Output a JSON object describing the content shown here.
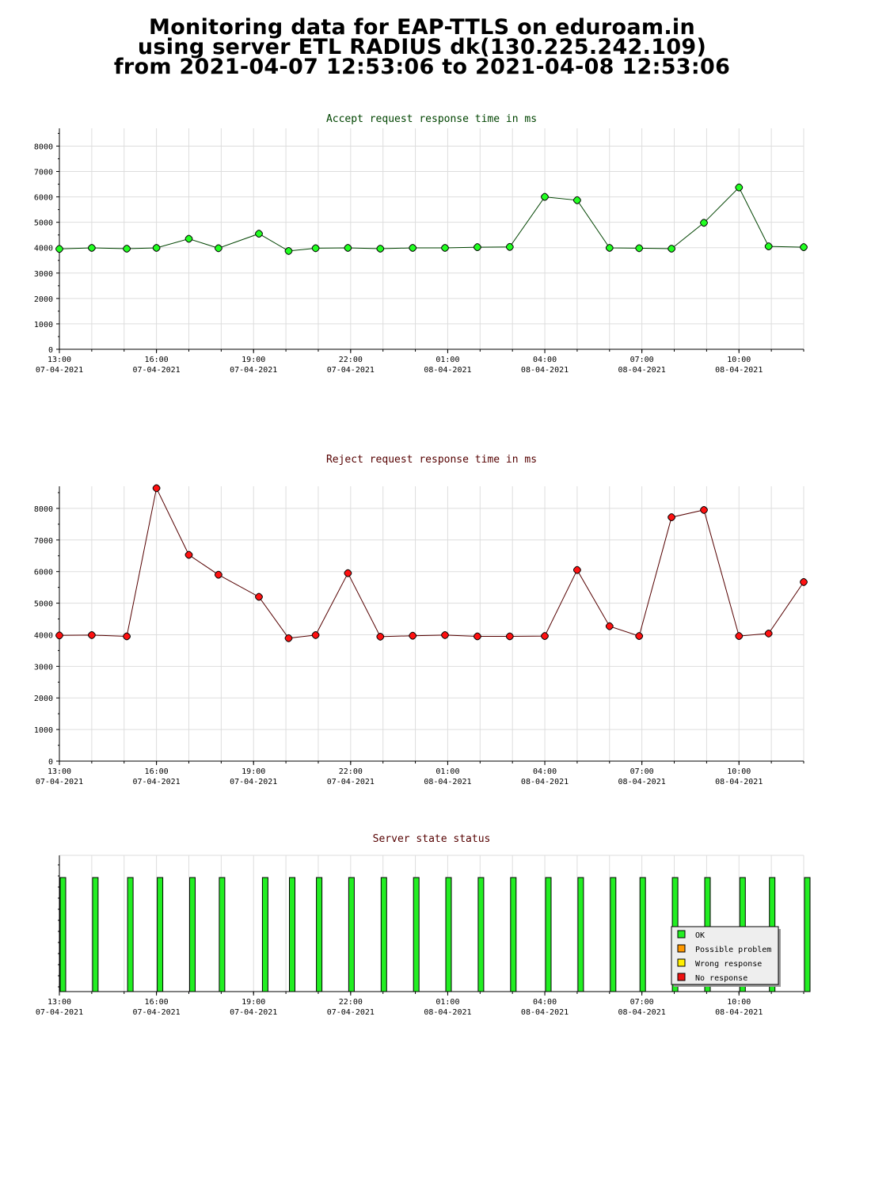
{
  "header": {
    "line1": "Monitoring data for EAP-TTLS on eduroam.in",
    "line2": "using server ETL RADIUS dk(130.225.242.109)",
    "line3": "from 2021-04-07  12:53:06 to 2021-04-08 12:53:06"
  },
  "chart_data": [
    {
      "type": "line",
      "title": "Accept request response time in ms",
      "title_color": "#004400",
      "xlabel": "",
      "ylabel": "",
      "x_ticks": [
        {
          "time": "13:00",
          "date": "07-04-2021"
        },
        {
          "time": "16:00",
          "date": "07-04-2021"
        },
        {
          "time": "19:00",
          "date": "07-04-2021"
        },
        {
          "time": "22:00",
          "date": "07-04-2021"
        },
        {
          "time": "01:00",
          "date": "08-04-2021"
        },
        {
          "time": "04:00",
          "date": "08-04-2021"
        },
        {
          "time": "07:00",
          "date": "08-04-2021"
        },
        {
          "time": "10:00",
          "date": "08-04-2021"
        }
      ],
      "x_range": [
        "2021-04-07 13:00",
        "2021-04-08 12:00"
      ],
      "y_ticks": [
        0,
        1000,
        2000,
        3000,
        4000,
        5000,
        6000,
        7000,
        8000
      ],
      "ylim": [
        0,
        8700
      ],
      "grid": true,
      "line_color": "#004400",
      "marker_color": "#22ff22",
      "series": [
        {
          "x": [
            "2021-04-07 13:00",
            "2021-04-07 14:00",
            "2021-04-07 15:05",
            "2021-04-07 16:00",
            "2021-04-07 17:00",
            "2021-04-07 17:55",
            "2021-04-07 19:10",
            "2021-04-07 20:05",
            "2021-04-07 20:55",
            "2021-04-07 21:55",
            "2021-04-07 22:55",
            "2021-04-07 23:55",
            "2021-04-08 00:55",
            "2021-04-08 01:55",
            "2021-04-08 02:55",
            "2021-04-08 04:00",
            "2021-04-08 05:00",
            "2021-04-08 06:00",
            "2021-04-08 06:55",
            "2021-04-08 07:55",
            "2021-04-08 08:55",
            "2021-04-08 10:00",
            "2021-04-08 10:55",
            "2021-04-08 12:00"
          ],
          "values": [
            3950,
            3990,
            3960,
            3990,
            4350,
            3980,
            4550,
            3870,
            3980,
            3990,
            3960,
            3990,
            3990,
            4020,
            4030,
            6000,
            5870,
            3990,
            3980,
            3960,
            4980,
            6370,
            4050,
            4020
          ]
        }
      ]
    },
    {
      "type": "line",
      "title": "Reject request response time in ms",
      "title_color": "#550000",
      "xlabel": "",
      "ylabel": "",
      "x_ticks": [
        {
          "time": "13:00",
          "date": "07-04-2021"
        },
        {
          "time": "16:00",
          "date": "07-04-2021"
        },
        {
          "time": "19:00",
          "date": "07-04-2021"
        },
        {
          "time": "22:00",
          "date": "07-04-2021"
        },
        {
          "time": "01:00",
          "date": "08-04-2021"
        },
        {
          "time": "04:00",
          "date": "08-04-2021"
        },
        {
          "time": "07:00",
          "date": "08-04-2021"
        },
        {
          "time": "10:00",
          "date": "08-04-2021"
        }
      ],
      "x_range": [
        "2021-04-07 13:00",
        "2021-04-08 12:00"
      ],
      "y_ticks": [
        0,
        1000,
        2000,
        3000,
        4000,
        5000,
        6000,
        7000,
        8000
      ],
      "ylim": [
        0,
        8700
      ],
      "grid": true,
      "line_color": "#550000",
      "marker_color": "#ff1111",
      "series": [
        {
          "x": [
            "2021-04-07 13:00",
            "2021-04-07 14:00",
            "2021-04-07 15:05",
            "2021-04-07 16:00",
            "2021-04-07 17:00",
            "2021-04-07 17:55",
            "2021-04-07 19:10",
            "2021-04-07 20:05",
            "2021-04-07 20:55",
            "2021-04-07 21:55",
            "2021-04-07 22:55",
            "2021-04-07 23:55",
            "2021-04-08 00:55",
            "2021-04-08 01:55",
            "2021-04-08 02:55",
            "2021-04-08 04:00",
            "2021-04-08 05:00",
            "2021-04-08 06:00",
            "2021-04-08 06:55",
            "2021-04-08 07:55",
            "2021-04-08 08:55",
            "2021-04-08 10:00",
            "2021-04-08 10:55",
            "2021-04-08 12:00"
          ],
          "values": [
            3980,
            3990,
            3950,
            8640,
            6530,
            5900,
            5200,
            3890,
            3990,
            5950,
            3940,
            3970,
            3990,
            3950,
            3950,
            3960,
            6050,
            4270,
            3960,
            7720,
            7950,
            3960,
            4040,
            5670
          ]
        }
      ]
    },
    {
      "type": "bar",
      "title": "Server state status",
      "title_color": "#550000",
      "xlabel": "",
      "ylabel": "",
      "x_ticks": [
        {
          "time": "13:00",
          "date": "07-04-2021"
        },
        {
          "time": "16:00",
          "date": "07-04-2021"
        },
        {
          "time": "19:00",
          "date": "07-04-2021"
        },
        {
          "time": "22:00",
          "date": "07-04-2021"
        },
        {
          "time": "01:00",
          "date": "08-04-2021"
        },
        {
          "time": "04:00",
          "date": "08-04-2021"
        },
        {
          "time": "07:00",
          "date": "08-04-2021"
        },
        {
          "time": "10:00",
          "date": "08-04-2021"
        }
      ],
      "x_range": [
        "2021-04-07 13:00",
        "2021-04-08 12:00"
      ],
      "grid": true,
      "legend": {
        "placement": "bottom-right",
        "items": [
          {
            "label": "OK",
            "color": "#22ee22"
          },
          {
            "label": "Possible problem",
            "color": "#ff9900"
          },
          {
            "label": "Wrong response",
            "color": "#ffee00"
          },
          {
            "label": "No response",
            "color": "#ee1111"
          }
        ]
      },
      "series": [
        {
          "x": [
            "2021-04-07 13:00",
            "2021-04-07 14:00",
            "2021-04-07 15:05",
            "2021-04-07 16:00",
            "2021-04-07 17:00",
            "2021-04-07 17:55",
            "2021-04-07 19:15",
            "2021-04-07 20:05",
            "2021-04-07 20:55",
            "2021-04-07 21:55",
            "2021-04-07 22:55",
            "2021-04-07 23:55",
            "2021-04-08 00:55",
            "2021-04-08 01:55",
            "2021-04-08 02:55",
            "2021-04-08 04:00",
            "2021-04-08 05:00",
            "2021-04-08 06:00",
            "2021-04-08 06:55",
            "2021-04-08 07:55",
            "2021-04-08 08:55",
            "2021-04-08 10:00",
            "2021-04-08 10:55",
            "2021-04-08 12:00"
          ],
          "states": [
            "OK",
            "OK",
            "OK",
            "OK",
            "OK",
            "OK",
            "OK",
            "OK",
            "OK",
            "OK",
            "OK",
            "OK",
            "OK",
            "OK",
            "OK",
            "OK",
            "OK",
            "OK",
            "OK",
            "OK",
            "OK",
            "OK",
            "OK",
            "OK"
          ]
        }
      ]
    }
  ]
}
